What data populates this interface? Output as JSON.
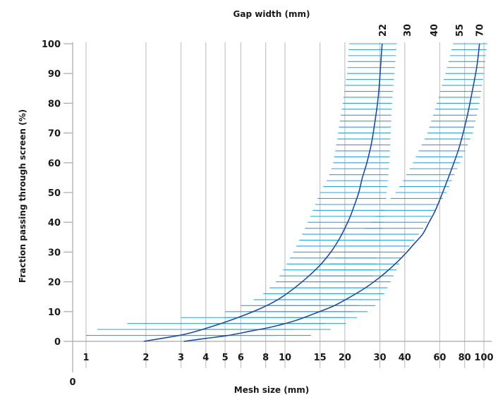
{
  "chart_data": {
    "type": "line",
    "title": "",
    "xlabel": "Mesh size (mm)",
    "ylabel": "Fraction passing through screen (%)",
    "top_axis_label": "Gap width (mm)",
    "x_scale": "log",
    "x_ticks": [
      1,
      2,
      3,
      4,
      5,
      6,
      8,
      10,
      15,
      20,
      30,
      40,
      60,
      80,
      100
    ],
    "x_origin_label": "0",
    "y_ticks": [
      0,
      10,
      20,
      30,
      40,
      50,
      60,
      70,
      80,
      90,
      100
    ],
    "ylim": [
      0,
      100
    ],
    "grid": "vertical",
    "colors": {
      "curve": "#1f4e9a",
      "band": "#2ea3dc",
      "grid": "#c4c4c4",
      "axis": "#a8a8a8"
    },
    "series": [
      {
        "name": "22",
        "x": [
          1.95,
          2.4,
          3.2,
          4.3,
          5.8,
          7.5,
          9.2,
          11.2,
          13.2,
          15.2,
          17.0,
          18.6,
          20.0,
          21.3,
          22.4,
          23.5,
          24.5,
          25.8,
          27.3,
          28.5,
          29.2,
          29.8,
          30.2,
          30.8
        ],
        "y": [
          0,
          1,
          2.5,
          5,
          8,
          11,
          14,
          18,
          22,
          26,
          30,
          34,
          38,
          42,
          46,
          50,
          55,
          60,
          67,
          75,
          80,
          86,
          92,
          100
        ]
      },
      {
        "name": "70",
        "x": [
          3.1,
          4.0,
          5.2,
          6.8,
          8.8,
          11.3,
          14.3,
          17.7,
          21.4,
          25.4,
          29.3,
          33.2,
          37.1,
          41.0,
          44.9,
          49.2,
          53.0,
          57.0,
          62.0,
          68.0,
          75.0,
          82.0,
          88.0,
          92.0,
          94.0,
          95.0
        ],
        "y": [
          0,
          1,
          2,
          3.5,
          5,
          7,
          9.5,
          12,
          15,
          18,
          21,
          24,
          27,
          30,
          33,
          36,
          40,
          44,
          50,
          57,
          65,
          75,
          85,
          92,
          97,
          100
        ]
      }
    ],
    "top_ticks": [
      {
        "label": "22",
        "x": 30.8
      },
      {
        "label": "30",
        "x": 41.0
      },
      {
        "label": "40",
        "x": 56.0
      },
      {
        "label": "55",
        "x": 75.0
      },
      {
        "label": "70",
        "x": 95.0
      }
    ],
    "bands": [
      {
        "name": "22",
        "bounds": [
          [
            0,
            1.0,
            10.0
          ],
          [
            3,
            1.0,
            8.8
          ],
          [
            5,
            1.3,
            14.0
          ],
          [
            7,
            2.0,
            18.0
          ],
          [
            8,
            3.0,
            20.0
          ],
          [
            10,
            5.0,
            22.0
          ],
          [
            12,
            6.0,
            23.5
          ],
          [
            15,
            7.5,
            25.0
          ],
          [
            20,
            9.0,
            27.0
          ],
          [
            25,
            10.0,
            28.5
          ],
          [
            30,
            11.0,
            29.5
          ],
          [
            35,
            12.0,
            30.5
          ],
          [
            40,
            13.0,
            31.5
          ],
          [
            45,
            14.0,
            32.0
          ],
          [
            50,
            15.0,
            32.5
          ],
          [
            55,
            16.5,
            33.0
          ],
          [
            60,
            17.5,
            33.5
          ],
          [
            70,
            18.5,
            34.0
          ],
          [
            80,
            19.5,
            34.5
          ],
          [
            90,
            20.5,
            35.5
          ],
          [
            100,
            21.0,
            36.5
          ]
        ]
      },
      {
        "name": "70",
        "bounds": [
          [
            0,
            2.5,
            11.0
          ],
          [
            2,
            2.8,
            13.5
          ],
          [
            5,
            3.5,
            19.0
          ],
          [
            8,
            5.0,
            23.0
          ],
          [
            10,
            6.5,
            26.0
          ],
          [
            12,
            8.0,
            28.5
          ],
          [
            15,
            10.0,
            31.0
          ],
          [
            20,
            13.0,
            34.0
          ],
          [
            25,
            16.0,
            37.0
          ],
          [
            30,
            19.5,
            40.0
          ],
          [
            35,
            23.0,
            46.0
          ],
          [
            40,
            27.0,
            52.0
          ],
          [
            45,
            31.0,
            58.0
          ],
          [
            50,
            36.0,
            65.0
          ],
          [
            55,
            40.0,
            70.0
          ],
          [
            60,
            44.0,
            76.0
          ],
          [
            70,
            52.0,
            88.0
          ],
          [
            80,
            58.0,
            95.0
          ],
          [
            90,
            64.0,
            100.0
          ],
          [
            100,
            70.0,
            104.0
          ]
        ]
      }
    ]
  }
}
